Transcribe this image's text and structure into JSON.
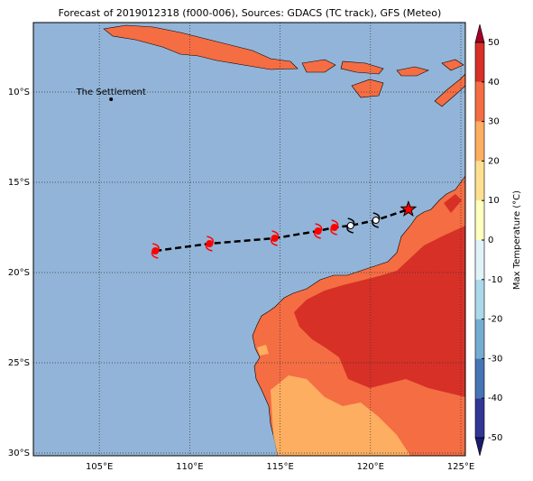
{
  "title": "Forecast of 2019012318 (f000-006), Sources: GDACS (TC track), GFS (Meteo)",
  "map": {
    "xlim": [
      101.35,
      125.25
    ],
    "ylim": [
      -30.15,
      -6.15
    ],
    "xticks": [
      {
        "value": 105,
        "label": "105°E"
      },
      {
        "value": 110,
        "label": "110°E"
      },
      {
        "value": 115,
        "label": "115°E"
      },
      {
        "value": 120,
        "label": "120°E"
      },
      {
        "value": 125,
        "label": "125°E"
      }
    ],
    "yticks": [
      {
        "value": -10,
        "label": "10°S"
      },
      {
        "value": -15,
        "label": "15°S"
      },
      {
        "value": -20,
        "label": "20°S"
      },
      {
        "value": -25,
        "label": "25°S"
      },
      {
        "value": -30,
        "label": "30°S"
      }
    ],
    "grid": true,
    "places": [
      {
        "name": "The Settlement",
        "lon": 105.65,
        "lat": -10.4
      }
    ],
    "track": {
      "lon": [
        108.1,
        111.1,
        114.7,
        117.1,
        118.0,
        118.9,
        120.3,
        122.1
      ],
      "lat": [
        -18.8,
        -18.4,
        -18.1,
        -17.7,
        -17.5,
        -17.4,
        -17.1,
        -16.5
      ],
      "colors": [
        "#ff0000",
        "#ff0000",
        "#ff0000",
        "#ff0000",
        "#ff0000",
        "#ffffff",
        "#ffffff",
        "#ff0000"
      ]
    }
  },
  "colorbar": {
    "label": "Max Temperature (°C)",
    "lim": [
      -50,
      50
    ],
    "ticks": [
      -50,
      -40,
      -30,
      -20,
      -10,
      0,
      10,
      20,
      30,
      40,
      50
    ],
    "colors": [
      "#313695",
      "#4575b4",
      "#74add1",
      "#abd9e9",
      "#e0f3f8",
      "#ffffbf",
      "#fee090",
      "#fdae61",
      "#f46d43",
      "#d73027"
    ],
    "under_color": "#1a1a6e",
    "over_color": "#a50026"
  }
}
